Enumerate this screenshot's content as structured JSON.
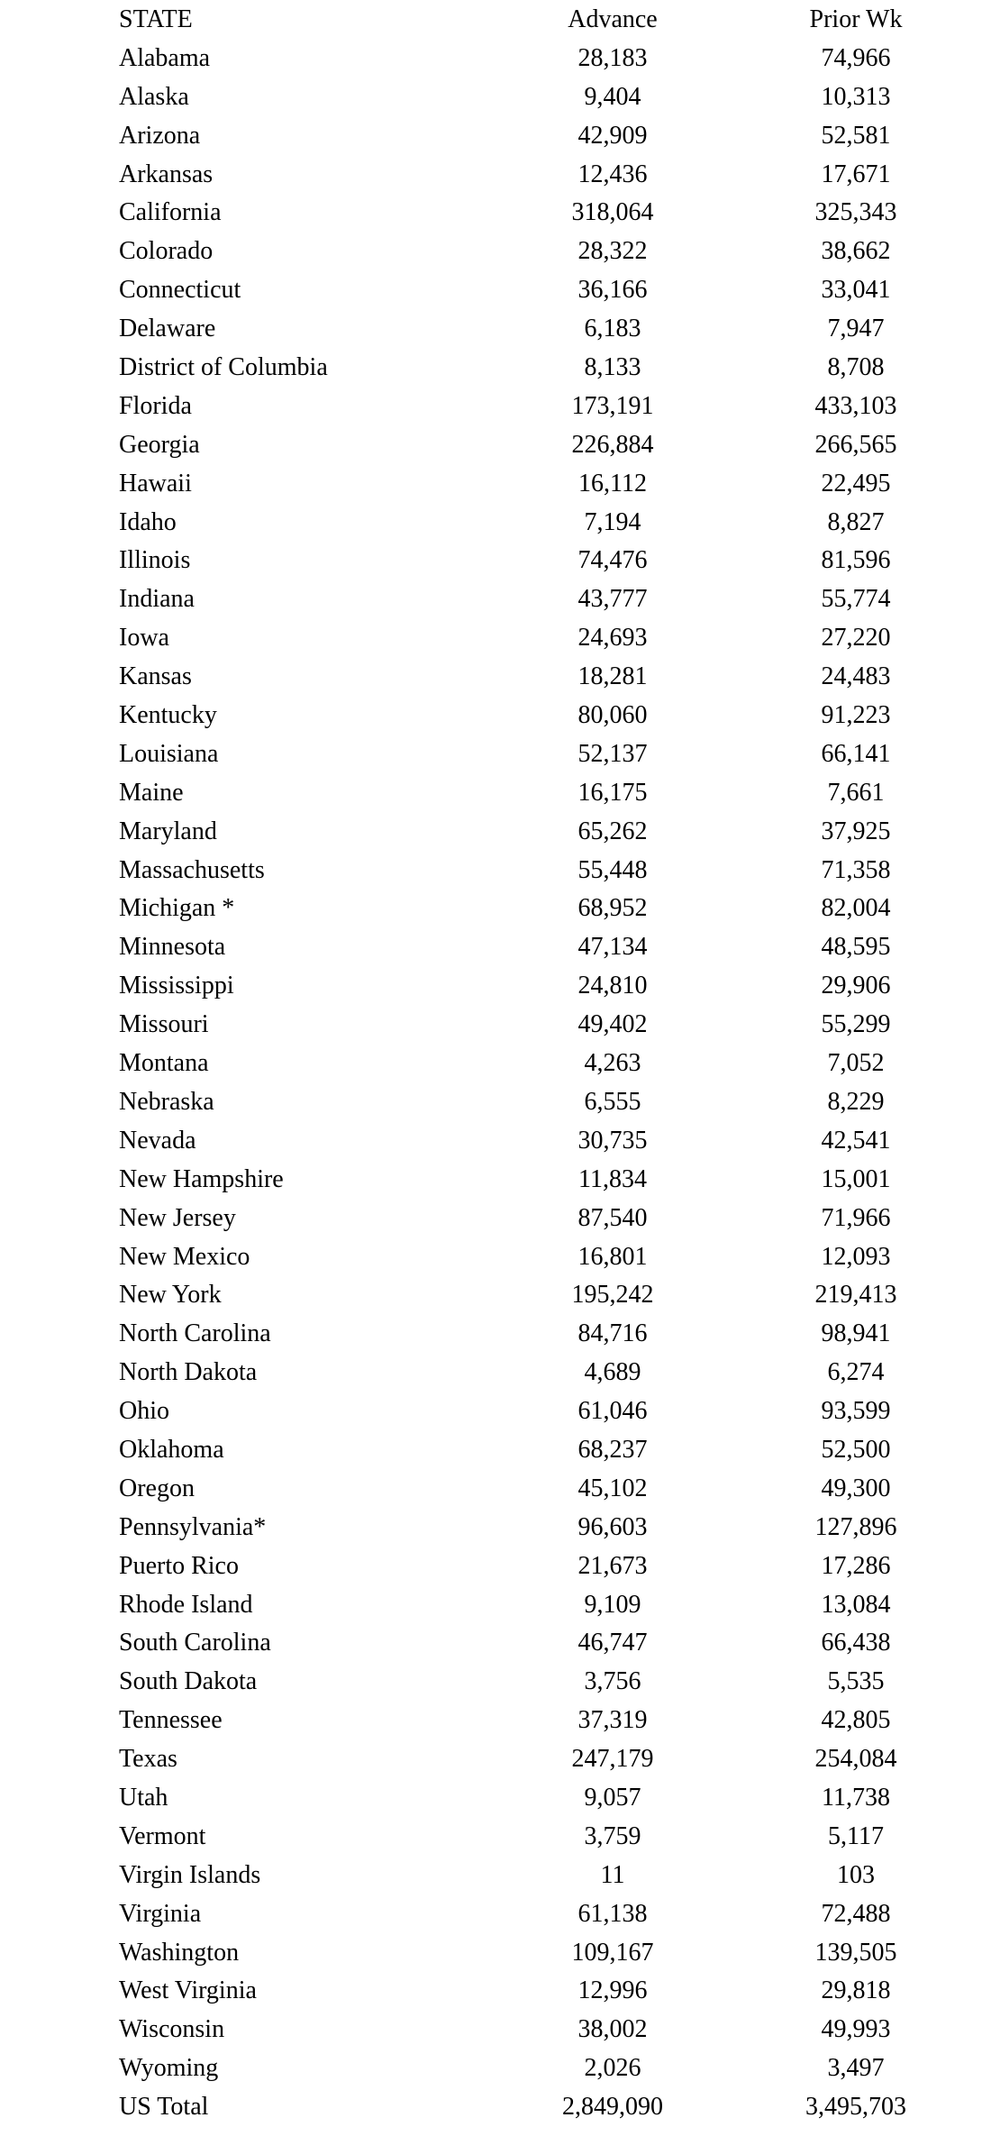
{
  "table": {
    "headers": {
      "state": "STATE",
      "advance": "Advance",
      "prior": "Prior Wk"
    },
    "rows": [
      {
        "state": "Alabama",
        "advance": "28,183",
        "prior": "74,966"
      },
      {
        "state": "Alaska",
        "advance": "9,404",
        "prior": "10,313"
      },
      {
        "state": "Arizona",
        "advance": "42,909",
        "prior": "52,581"
      },
      {
        "state": "Arkansas",
        "advance": "12,436",
        "prior": "17,671"
      },
      {
        "state": "California",
        "advance": "318,064",
        "prior": "325,343"
      },
      {
        "state": "Colorado",
        "advance": "28,322",
        "prior": "38,662"
      },
      {
        "state": "Connecticut",
        "advance": "36,166",
        "prior": "33,041"
      },
      {
        "state": "Delaware",
        "advance": "6,183",
        "prior": "7,947"
      },
      {
        "state": "District of Columbia",
        "advance": "8,133",
        "prior": "8,708"
      },
      {
        "state": "Florida",
        "advance": "173,191",
        "prior": "433,103"
      },
      {
        "state": "Georgia",
        "advance": "226,884",
        "prior": "266,565"
      },
      {
        "state": "Hawaii",
        "advance": "16,112",
        "prior": "22,495"
      },
      {
        "state": "Idaho",
        "advance": "7,194",
        "prior": "8,827"
      },
      {
        "state": "Illinois",
        "advance": "74,476",
        "prior": "81,596"
      },
      {
        "state": "Indiana",
        "advance": "43,777",
        "prior": "55,774"
      },
      {
        "state": "Iowa",
        "advance": "24,693",
        "prior": "27,220"
      },
      {
        "state": "Kansas",
        "advance": "18,281",
        "prior": "24,483"
      },
      {
        "state": "Kentucky",
        "advance": "80,060",
        "prior": "91,223"
      },
      {
        "state": "Louisiana",
        "advance": "52,137",
        "prior": "66,141"
      },
      {
        "state": "Maine",
        "advance": "16,175",
        "prior": "7,661"
      },
      {
        "state": "Maryland",
        "advance": "65,262",
        "prior": "37,925"
      },
      {
        "state": "Massachusetts",
        "advance": "55,448",
        "prior": "71,358"
      },
      {
        "state": "Michigan *",
        "advance": "68,952",
        "prior": "82,004"
      },
      {
        "state": "Minnesota",
        "advance": "47,134",
        "prior": "48,595"
      },
      {
        "state": "Mississippi",
        "advance": "24,810",
        "prior": "29,906"
      },
      {
        "state": "Missouri",
        "advance": "49,402",
        "prior": "55,299"
      },
      {
        "state": "Montana",
        "advance": "4,263",
        "prior": "7,052"
      },
      {
        "state": "Nebraska",
        "advance": "6,555",
        "prior": "8,229"
      },
      {
        "state": "Nevada",
        "advance": "30,735",
        "prior": "42,541"
      },
      {
        "state": "New Hampshire",
        "advance": "11,834",
        "prior": "15,001"
      },
      {
        "state": "New Jersey",
        "advance": "87,540",
        "prior": "71,966"
      },
      {
        "state": "New Mexico",
        "advance": "16,801",
        "prior": "12,093"
      },
      {
        "state": "New York",
        "advance": "195,242",
        "prior": "219,413"
      },
      {
        "state": "North Carolina",
        "advance": "84,716",
        "prior": "98,941"
      },
      {
        "state": "North Dakota",
        "advance": "4,689",
        "prior": "6,274"
      },
      {
        "state": "Ohio",
        "advance": "61,046",
        "prior": "93,599"
      },
      {
        "state": "Oklahoma",
        "advance": "68,237",
        "prior": "52,500"
      },
      {
        "state": "Oregon",
        "advance": "45,102",
        "prior": "49,300"
      },
      {
        "state": "Pennsylvania*",
        "advance": "96,603",
        "prior": "127,896"
      },
      {
        "state": "Puerto Rico",
        "advance": "21,673",
        "prior": "17,286"
      },
      {
        "state": "Rhode Island",
        "advance": "9,109",
        "prior": "13,084"
      },
      {
        "state": "South Carolina",
        "advance": "46,747",
        "prior": "66,438"
      },
      {
        "state": "South Dakota",
        "advance": "3,756",
        "prior": "5,535"
      },
      {
        "state": "Tennessee",
        "advance": "37,319",
        "prior": "42,805"
      },
      {
        "state": "Texas",
        "advance": "247,179",
        "prior": "254,084"
      },
      {
        "state": "Utah",
        "advance": "9,057",
        "prior": "11,738"
      },
      {
        "state": "Vermont",
        "advance": "3,759",
        "prior": "5,117"
      },
      {
        "state": "Virgin Islands",
        "advance": "11",
        "prior": "103"
      },
      {
        "state": "Virginia",
        "advance": "61,138",
        "prior": "72,488"
      },
      {
        "state": "Washington",
        "advance": "109,167",
        "prior": "139,505"
      },
      {
        "state": "West Virginia",
        "advance": "12,996",
        "prior": "29,818"
      },
      {
        "state": "Wisconsin",
        "advance": "38,002",
        "prior": "49,993"
      },
      {
        "state": "Wyoming",
        "advance": "2,026",
        "prior": "3,497"
      },
      {
        "state": "US Total",
        "advance": "2,849,090",
        "prior": "3,495,703"
      }
    ]
  }
}
